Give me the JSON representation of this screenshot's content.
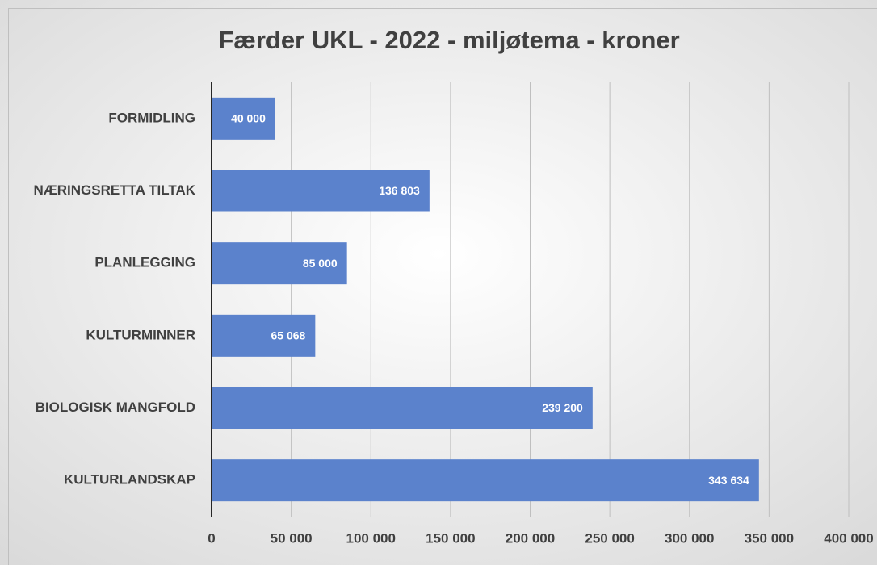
{
  "chart_data": {
    "type": "barh",
    "title": "Færder UKL - 2022 - miljøtema - kroner",
    "categories": [
      "FORMIDLING",
      "NÆRINGSRETTA TILTAK",
      "PLANLEGGING",
      "KULTURMINNER",
      "BIOLOGISK MANGFOLD",
      "KULTURLANDSKAP"
    ],
    "values": [
      40000,
      136803,
      85000,
      65068,
      239200,
      343634
    ],
    "value_labels": [
      "40 000",
      "136 803",
      "85 000",
      "65 068",
      "239 200",
      "343 634"
    ],
    "color": "#5b82cc",
    "xlim": [
      0,
      400000
    ],
    "xticks": [
      0,
      {
        "value": 50000,
        "label": "50 000"
      },
      {
        "value": 100000,
        "label": "100 000"
      },
      {
        "value": 150000,
        "label": "150 000"
      },
      {
        "value": 200000,
        "label": "200 000"
      },
      {
        "value": 250000,
        "label": "250 000"
      },
      {
        "value": 300000,
        "label": "300 000"
      },
      {
        "value": 350000,
        "label": "350 000"
      },
      {
        "value": 400000,
        "label": "400 000"
      }
    ],
    "grid": true
  }
}
